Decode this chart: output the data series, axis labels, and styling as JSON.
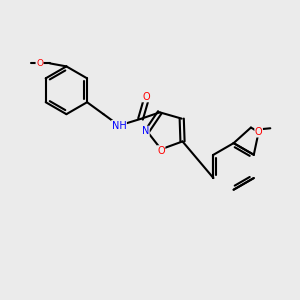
{
  "background_color": "#ebebeb",
  "bond_color": "#000000",
  "bond_width": 1.5,
  "atom_colors": {
    "O": "#ff0000",
    "N": "#0000ff",
    "C": "#000000"
  },
  "font_size": 7.0,
  "figsize": [
    3.0,
    3.0
  ],
  "dpi": 100
}
